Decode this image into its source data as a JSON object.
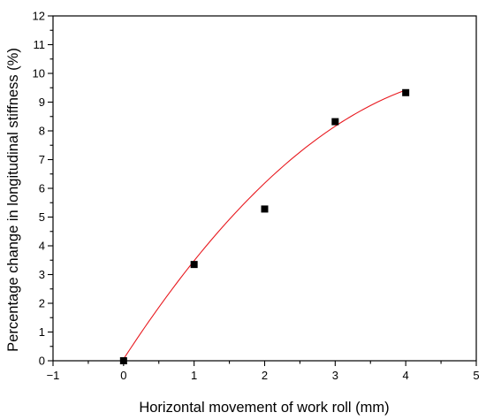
{
  "chart_data": {
    "type": "scatter",
    "xlabel": "Horizontal movement of work roll (mm)",
    "ylabel": "Percentage change in longitudinal stiffness (%)",
    "xlim": [
      -1,
      5
    ],
    "ylim": [
      0,
      12
    ],
    "x_ticks": [
      "−1",
      "0",
      "1",
      "2",
      "3",
      "4",
      "5"
    ],
    "y_ticks": [
      "0",
      "1",
      "2",
      "3",
      "4",
      "5",
      "6",
      "7",
      "8",
      "9",
      "10",
      "11",
      "12"
    ],
    "series": [
      {
        "marker": "square",
        "color": "#000000",
        "x": [
          0,
          1,
          2,
          3,
          4
        ],
        "y": [
          0.0,
          3.35,
          5.28,
          8.32,
          9.33
        ]
      }
    ],
    "fit_curve": {
      "color": "#e8191f",
      "x_range": [
        0,
        4
      ],
      "poly_coefficients": [
        0.06,
        3.78,
        -0.36
      ]
    },
    "grid": false,
    "legend": "none"
  }
}
